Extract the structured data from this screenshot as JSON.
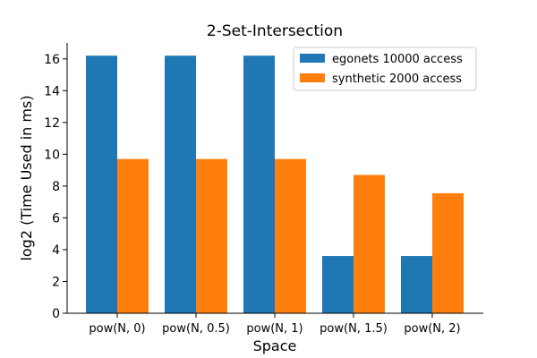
{
  "chart_data": {
    "type": "bar",
    "title": "2-Set-Intersection",
    "xlabel": "Space",
    "ylabel": "log2 (Time Used in ms)",
    "categories": [
      "pow(N, 0)",
      "pow(N, 0.5)",
      "pow(N, 1)",
      "pow(N, 1.5)",
      "pow(N, 2)"
    ],
    "series": [
      {
        "name": "egonets 10000 access",
        "color": "#1f77b4",
        "values": [
          16.2,
          16.2,
          16.2,
          3.6,
          3.6
        ]
      },
      {
        "name": "synthetic 2000 access",
        "color": "#ff7f0e",
        "values": [
          9.7,
          9.7,
          9.7,
          8.7,
          7.55
        ]
      }
    ],
    "ylim": [
      0,
      17
    ],
    "yticks": [
      0,
      2,
      4,
      6,
      8,
      10,
      12,
      14,
      16
    ],
    "grid": false,
    "legend_position": "top-right"
  }
}
